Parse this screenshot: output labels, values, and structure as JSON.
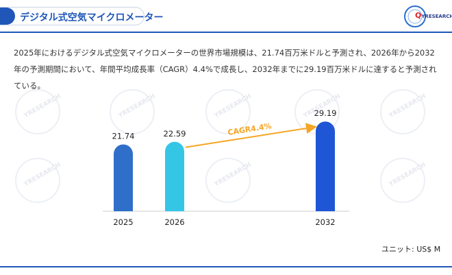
{
  "header": {
    "title": "デジタル式空気マイクロメーター",
    "logo": {
      "mark": "Q",
      "brand": "YRESEARCH"
    }
  },
  "description": "2025年におけるデジタル式空気マイクロメーターの世界市場規模は、21.74百万米ドルと予測され、2026年から2032年の予測期間において、年間平均成長率（CAGR）4.4%で成長し、2032年までに29.19百万米ドルに達すると予測されている。",
  "unit_label": "ユニット: US$ M",
  "colors": {
    "accent": "#1f56b8",
    "bar_2025": "#2f6fc9",
    "bar_2026": "#35c6e6",
    "bar_2032": "#1f56d6",
    "cagr_arrow": "#f5a623"
  },
  "chart_data": {
    "type": "bar",
    "categories": [
      "2025",
      "2026",
      "2032"
    ],
    "values": [
      21.74,
      22.59,
      29.19
    ],
    "value_labels": [
      "21.74",
      "22.59",
      "29.19"
    ],
    "annotation": {
      "text": "CAGR4.4%",
      "from": "2026",
      "to": "2032"
    },
    "unit": "US$ M"
  }
}
